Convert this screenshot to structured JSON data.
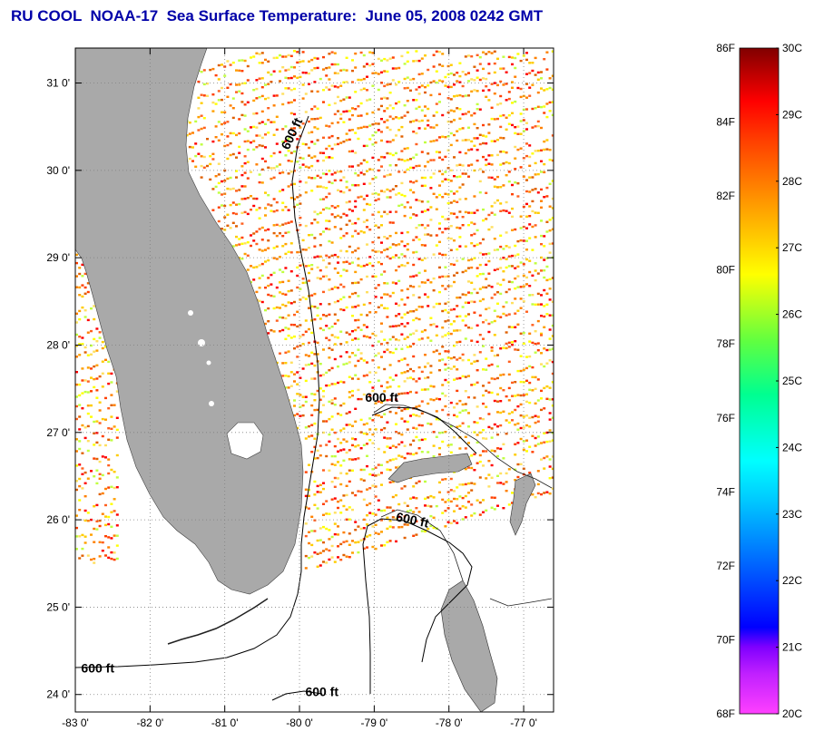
{
  "header": {
    "title": "RU COOL  NOAA-17  Sea Surface Temperature:  June 05, 2008 0242 GMT"
  },
  "map": {
    "lon_range": [
      -83.0,
      -76.6
    ],
    "lat_range": [
      23.8,
      31.4
    ],
    "lat_ticks": [
      {
        "value": 31,
        "label": "31 0'"
      },
      {
        "value": 30,
        "label": "30 0'"
      },
      {
        "value": 29,
        "label": "29 0'"
      },
      {
        "value": 28,
        "label": "28 0'"
      },
      {
        "value": 27,
        "label": "27 0'"
      },
      {
        "value": 26,
        "label": "26 0'"
      },
      {
        "value": 25,
        "label": "25 0'"
      },
      {
        "value": 24,
        "label": "24 0'"
      }
    ],
    "lon_ticks": [
      {
        "value": -83,
        "label": "-83 0'"
      },
      {
        "value": -82,
        "label": "-82 0'"
      },
      {
        "value": -81,
        "label": "-81 0'"
      },
      {
        "value": -80,
        "label": "-80 0'"
      },
      {
        "value": -79,
        "label": "-79 0'"
      },
      {
        "value": -78,
        "label": "-78 0'"
      },
      {
        "value": -77,
        "label": "-77 0'"
      }
    ],
    "grid": "dotted",
    "land_color": "#a9a9a9",
    "isobath_label": "600 ft",
    "isobath_labels": [
      {
        "text": "600 ft",
        "lon": -80.05,
        "lat": 30.4
      },
      {
        "text": "600 ft",
        "lon": -78.9,
        "lat": 27.35
      },
      {
        "text": "600 ft",
        "lon": -78.5,
        "lat": 25.95
      },
      {
        "text": "600 ft",
        "lon": -82.7,
        "lat": 24.25
      },
      {
        "text": "600 ft",
        "lon": -79.7,
        "lat": 23.98
      }
    ]
  },
  "colorbar": {
    "f_labels": [
      "86F",
      "84F",
      "82F",
      "80F",
      "78F",
      "76F",
      "74F",
      "72F",
      "70F",
      "68F"
    ],
    "c_labels": [
      "30C",
      "29C",
      "28C",
      "27C",
      "26C",
      "25C",
      "24C",
      "23C",
      "22C",
      "21C",
      "20C"
    ],
    "range_c": [
      20,
      30
    ],
    "colors": [
      "#ff40ff",
      "#8000ff",
      "#0000ff",
      "#00a0ff",
      "#00ffff",
      "#00ff80",
      "#ffff00",
      "#ff8000",
      "#ff0000",
      "#800000"
    ]
  }
}
